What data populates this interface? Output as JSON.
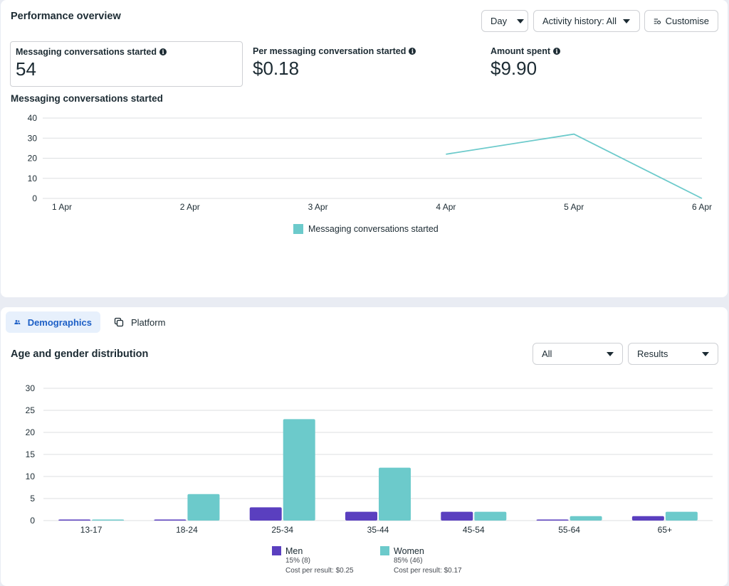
{
  "performance": {
    "title": "Performance overview",
    "controls": {
      "day_label": "Day",
      "activity_label": "Activity history: All",
      "customise_label": "Customise"
    },
    "metrics": [
      {
        "label": "Messaging conversations started",
        "value": "54"
      },
      {
        "label": "Per messaging conversation started",
        "value": "$0.18"
      },
      {
        "label": "Amount spent",
        "value": "$9.90"
      }
    ],
    "chart_title": "Messaging conversations started"
  },
  "demographics": {
    "tabs": [
      {
        "label": "Demographics",
        "icon": "people-icon",
        "active": true
      },
      {
        "label": "Platform",
        "icon": "copy-icon",
        "active": false
      }
    ],
    "title": "Age and gender distribution",
    "filter_all_label": "All",
    "filter_results_label": "Results",
    "legend": [
      {
        "name": "Men",
        "share": "15% (8)",
        "cost": "Cost per result: $0.25"
      },
      {
        "name": "Women",
        "share": "85% (46)",
        "cost": "Cost per result: $0.17"
      }
    ]
  },
  "colors": {
    "men": "#5a3fbf",
    "women": "#6ccacb",
    "line": "#6ccacb",
    "grid": "#dddfe2",
    "axis_text": "#1c2b33"
  },
  "chart_data": [
    {
      "type": "line",
      "title": "Messaging conversations started",
      "x": [
        "1 Apr",
        "2 Apr",
        "3 Apr",
        "4 Apr",
        "5 Apr",
        "6 Apr"
      ],
      "series": [
        {
          "name": "Messaging conversations started",
          "values": [
            null,
            null,
            null,
            22,
            32,
            0
          ]
        }
      ],
      "ylim": [
        0,
        40
      ],
      "yticks": [
        0,
        10,
        20,
        30,
        40
      ],
      "grid": true,
      "legend": "bottom-center"
    },
    {
      "type": "bar",
      "title": "Age and gender distribution",
      "categories": [
        "13-17",
        "18-24",
        "25-34",
        "35-44",
        "45-54",
        "55-64",
        "65+"
      ],
      "series": [
        {
          "name": "Men",
          "values": [
            0,
            0,
            3,
            2,
            2,
            0,
            1
          ]
        },
        {
          "name": "Women",
          "values": [
            0,
            6,
            23,
            12,
            2,
            1,
            2
          ]
        }
      ],
      "ylim": [
        0,
        30
      ],
      "yticks": [
        0,
        5,
        10,
        15,
        20,
        25,
        30
      ],
      "grid": true,
      "legend": "bottom-center"
    }
  ]
}
